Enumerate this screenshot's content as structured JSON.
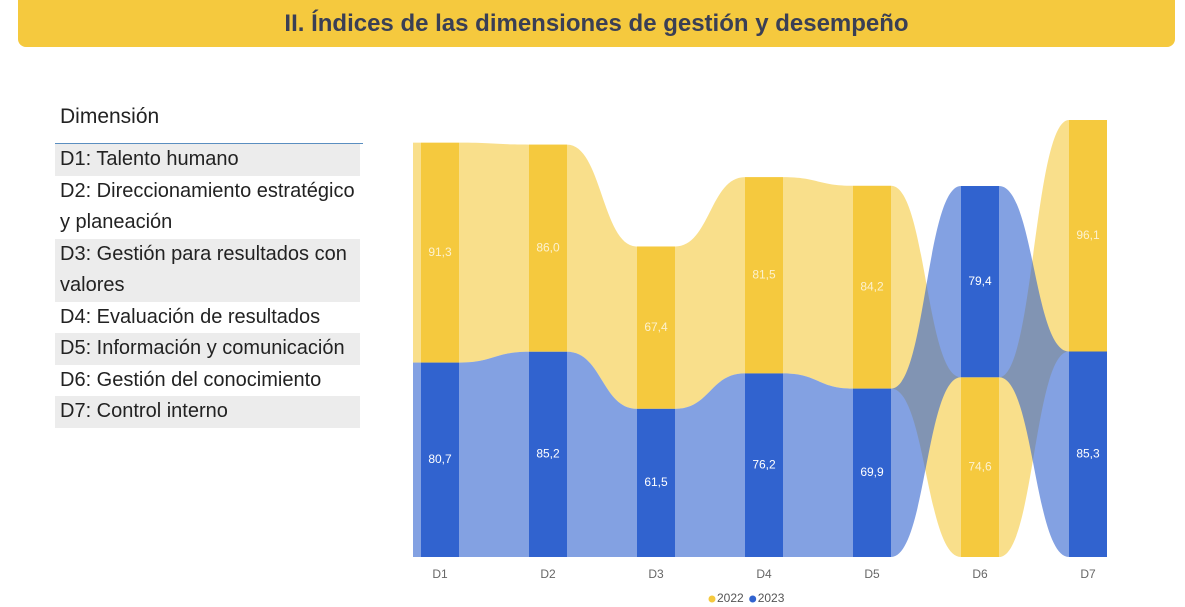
{
  "header": {
    "title": "II. Índices de las dimensiones de gestión y desempeño"
  },
  "legend_panel": {
    "heading": "Dimensión",
    "items": [
      "D1: Talento humano",
      "D2: Direccionamiento estratégico y planeación",
      "D3: Gestión para resultados con valores",
      "D4: Evaluación de resultados",
      "D5: Información y comunicación",
      "D6: Gestión del conocimiento",
      "D7: Control interno"
    ]
  },
  "chart_data": {
    "type": "ribbon",
    "categories": [
      "D1",
      "D2",
      "D3",
      "D4",
      "D5",
      "D6",
      "D7"
    ],
    "series": [
      {
        "name": "2022",
        "color": "#f5c93e",
        "values": [
          91.3,
          86.0,
          67.4,
          81.5,
          84.2,
          74.6,
          96.1
        ],
        "value_labels": [
          "91,3",
          "86,0",
          "67,4",
          "81,5",
          "84,2",
          "74,6",
          "96,1"
        ]
      },
      {
        "name": "2023",
        "color": "#3163cf",
        "values": [
          80.7,
          85.2,
          61.5,
          76.2,
          69.9,
          79.4,
          85.3
        ],
        "value_labels": [
          "80,7",
          "85,2",
          "61,5",
          "76,2",
          "69,9",
          "79,4",
          "85,3"
        ]
      }
    ],
    "legend": "bottom"
  }
}
